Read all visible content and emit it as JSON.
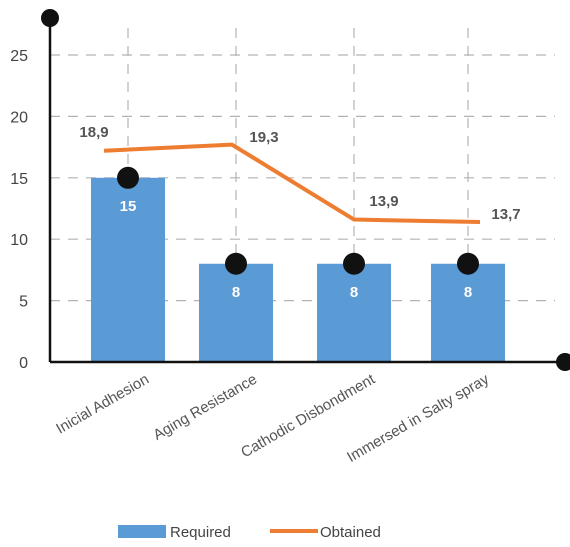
{
  "chart_data": {
    "type": "bar",
    "categories": [
      "Inicial Adhesion",
      "Aging Resistance",
      "Cathodic Disbondment",
      "Immersed in Salty spray"
    ],
    "series": [
      {
        "name": "Required",
        "type": "bar",
        "values": [
          15,
          8,
          8,
          8
        ],
        "labels": [
          "15",
          "8",
          "8",
          "8"
        ],
        "color": "#5b9bd5"
      },
      {
        "name": "Obtained",
        "type": "line",
        "values": [
          18.9,
          19.3,
          13.9,
          13.7
        ],
        "labels": [
          "18,9",
          "19,3",
          "13,9",
          "13,7"
        ],
        "color": "#ed7d31"
      }
    ],
    "y_ticks": [
      "0",
      "5",
      "10",
      "15",
      "20",
      "25"
    ],
    "ylim": [
      0,
      27
    ],
    "grid": true,
    "legend": "bottom",
    "title": "",
    "xlabel": "",
    "ylabel": ""
  }
}
